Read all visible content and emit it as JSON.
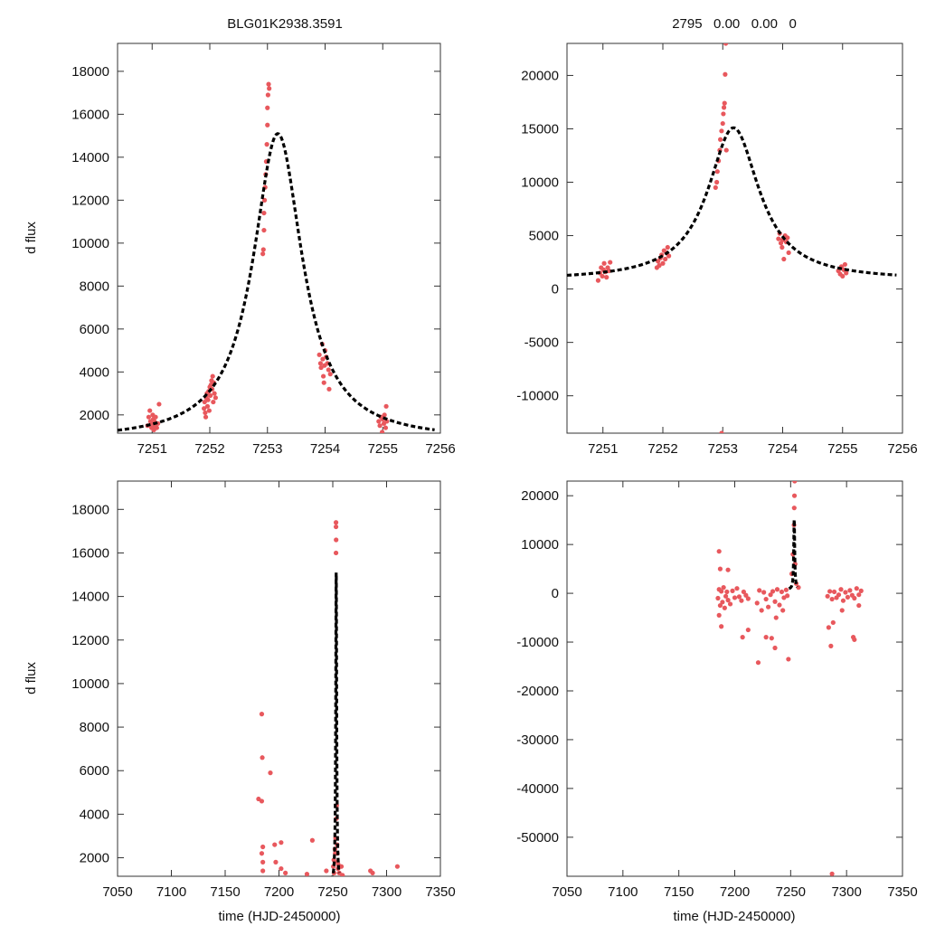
{
  "chart_data": [
    {
      "id": "p1",
      "type": "scatter",
      "title": "BLG01K2938.3591",
      "xlabel": "",
      "ylabel": "d flux",
      "xlim": [
        7250.4,
        7256.0
      ],
      "ylim": [
        1150,
        19300
      ],
      "xticks": [
        7251,
        7252,
        7253,
        7254,
        7255,
        7256
      ],
      "yticks": [
        2000,
        4000,
        6000,
        8000,
        10000,
        12000,
        14000,
        16000,
        18000
      ],
      "colors": {
        "data": "#e8585d",
        "model": "#000000"
      },
      "model": {
        "t0": 7253.18,
        "peak": 15100,
        "base": 800,
        "width": 0.52,
        "x_range": [
          7250.4,
          7255.9
        ]
      },
      "series": [
        {
          "name": "data",
          "x": [
            7250.92,
            7250.94,
            7250.96,
            7250.97,
            7250.99,
            7251.0,
            7251.01,
            7251.02,
            7251.03,
            7251.04,
            7251.05,
            7251.06,
            7251.08,
            7251.1,
            7251.12,
            7251.9,
            7251.91,
            7251.92,
            7251.93,
            7251.94,
            7251.95,
            7251.96,
            7251.97,
            7251.98,
            7251.99,
            7252.0,
            7252.01,
            7252.02,
            7252.03,
            7252.04,
            7252.05,
            7252.06,
            7252.07,
            7252.08,
            7252.1,
            7252.92,
            7252.93,
            7252.94,
            7252.94,
            7252.95,
            7252.96,
            7252.97,
            7252.98,
            7252.99,
            7253.0,
            7253.0,
            7253.01,
            7253.02,
            7253.03,
            7253.9,
            7253.92,
            7253.93,
            7253.95,
            7253.96,
            7253.97,
            7253.98,
            7253.99,
            7254.0,
            7254.02,
            7254.04,
            7254.06,
            7254.07,
            7254.09,
            7254.93,
            7254.95,
            7254.97,
            7254.99,
            7255.0,
            7255.02,
            7255.03,
            7255.05,
            7255.06,
            7255.07
          ],
          "y": [
            1500,
            1900,
            2200,
            1700,
            1400,
            1600,
            2000,
            1800,
            1300,
            1700,
            1500,
            1900,
            1400,
            1600,
            2500,
            2300,
            2600,
            2100,
            1900,
            2800,
            3000,
            2400,
            2700,
            3100,
            2200,
            3300,
            2900,
            3400,
            3600,
            3200,
            3800,
            2600,
            3500,
            3000,
            2800,
            9500,
            9700,
            10600,
            11400,
            12000,
            12600,
            13200,
            13800,
            14600,
            15500,
            16300,
            16900,
            17400,
            17200,
            4800,
            4400,
            4200,
            5300,
            4600,
            3800,
            3500,
            4300,
            5000,
            4700,
            4400,
            4100,
            3200,
            3900,
            1700,
            1500,
            1900,
            1200,
            1800,
            1600,
            2000,
            1400,
            2400,
            1700
          ]
        }
      ]
    },
    {
      "id": "p2",
      "type": "scatter",
      "title": "2795   0.00   0.00   0",
      "xlabel": "",
      "ylabel": "",
      "xlim": [
        7250.4,
        7256.0
      ],
      "ylim": [
        -13500,
        23000
      ],
      "xticks": [
        7251,
        7252,
        7253,
        7254,
        7255,
        7256
      ],
      "yticks": [
        -10000,
        -5000,
        0,
        5000,
        10000,
        15000,
        20000
      ],
      "colors": {
        "data": "#e8585d",
        "model": "#000000"
      },
      "model": {
        "t0": 7253.18,
        "peak": 15100,
        "base": 800,
        "width": 0.52,
        "x_range": [
          7250.4,
          7255.9
        ]
      },
      "series": [
        {
          "name": "data",
          "x": [
            7250.92,
            7250.95,
            7250.97,
            7250.99,
            7251.01,
            7251.02,
            7251.04,
            7251.06,
            7251.08,
            7251.1,
            7251.12,
            7251.9,
            7251.92,
            7251.94,
            7251.96,
            7251.98,
            7252.0,
            7252.02,
            7252.04,
            7252.06,
            7252.08,
            7252.1,
            7252.88,
            7252.9,
            7252.91,
            7252.93,
            7252.95,
            7252.96,
            7252.98,
            7253.0,
            7253.01,
            7253.02,
            7253.03,
            7253.04,
            7253.05,
            7253.06,
            7252.98,
            7253.93,
            7253.95,
            7253.97,
            7253.99,
            7254.0,
            7254.02,
            7254.04,
            7254.06,
            7254.08,
            7254.1,
            7254.93,
            7254.96,
            7254.98,
            7255.0,
            7255.02,
            7255.04,
            7255.06
          ],
          "y": [
            800,
            1500,
            2000,
            1200,
            1800,
            2400,
            1600,
            1100,
            2000,
            1700,
            2500,
            2000,
            2600,
            2200,
            2900,
            3200,
            2400,
            3600,
            2800,
            3400,
            3900,
            3100,
            9500,
            10000,
            11000,
            12000,
            13000,
            14000,
            14800,
            15500,
            16400,
            17000,
            17400,
            20100,
            23000,
            13000,
            -13500,
            4700,
            5200,
            4300,
            3900,
            4600,
            2800,
            5000,
            4400,
            4800,
            3400,
            1700,
            1400,
            2100,
            1200,
            1800,
            2300,
            1500
          ]
        }
      ]
    },
    {
      "id": "p3",
      "type": "scatter",
      "title": "",
      "xlabel": "time (HJD-2450000)",
      "ylabel": "d flux",
      "xlim": [
        7050,
        7350
      ],
      "ylim": [
        1150,
        19300
      ],
      "xticks": [
        7050,
        7100,
        7150,
        7200,
        7250,
        7300,
        7350
      ],
      "yticks": [
        2000,
        4000,
        6000,
        8000,
        10000,
        12000,
        14000,
        16000,
        18000
      ],
      "colors": {
        "data": "#e8585d",
        "model": "#000000"
      },
      "model": {
        "t0": 7253.18,
        "peak": 15100,
        "base": 800,
        "width": 0.52,
        "x_range": [
          7248.5,
          7255.9
        ]
      },
      "series": [
        {
          "name": "data",
          "x": [
            7181.0,
            7184.0,
            7184.5,
            7184.0,
            7185.0,
            7184.0,
            7185.0,
            7185.0,
            7192.0,
            7196.0,
            7197.0,
            7202.0,
            7202.0,
            7206.0,
            7231.0,
            7244.0,
            7226.0,
            7250.5,
            7251.0,
            7251.2,
            7252.0,
            7252.3,
            7252.6,
            7253.0,
            7253.0,
            7253.0,
            7253.1,
            7253.4,
            7253.6,
            7254.0,
            7254.2,
            7254.4,
            7254.8,
            7255.0,
            7256.0,
            7258.0,
            7259.0,
            7285.0,
            7287.0,
            7310.0
          ],
          "y": [
            4700,
            8600,
            6600,
            4600,
            2500,
            2200,
            1800,
            1400,
            5900,
            2600,
            1800,
            2700,
            1500,
            1300,
            2800,
            1400,
            1250,
            1600,
            1900,
            1300,
            2400,
            2200,
            2900,
            17400,
            16000,
            17200,
            16600,
            3800,
            4400,
            2600,
            2200,
            1800,
            1500,
            1700,
            1300,
            1600,
            1200,
            1400,
            1300,
            1600
          ]
        }
      ]
    },
    {
      "id": "p4",
      "type": "scatter",
      "title": "",
      "xlabel": "time (HJD-2450000)",
      "ylabel": "",
      "xlim": [
        7050,
        7350
      ],
      "ylim": [
        -58000,
        23000
      ],
      "xticks": [
        7050,
        7100,
        7150,
        7200,
        7250,
        7300,
        7350
      ],
      "yticks": [
        -50000,
        -40000,
        -30000,
        -20000,
        -10000,
        0,
        10000,
        20000
      ],
      "colors": {
        "data": "#e8585d",
        "model": "#000000"
      },
      "model": {
        "t0": 7253.18,
        "peak": 15100,
        "base": 800,
        "width": 0.52,
        "x_range": [
          7248.5,
          7255.9
        ]
      },
      "series": [
        {
          "name": "data",
          "x": [
            7185.0,
            7186.0,
            7187.0,
            7188.0,
            7189.0,
            7190.0,
            7192.0,
            7193.0,
            7194.0,
            7186.0,
            7188.0,
            7191.0,
            7196.0,
            7198.0,
            7200.0,
            7202.0,
            7204.0,
            7206.0,
            7208.0,
            7210.0,
            7212.0,
            7220.0,
            7222.0,
            7224.0,
            7226.0,
            7228.0,
            7230.0,
            7232.0,
            7234.0,
            7236.0,
            7238.0,
            7240.0,
            7242.0,
            7244.0,
            7246.0,
            7247.0,
            7221.0,
            7228.0,
            7233.0,
            7236.0,
            7248.0,
            7251.0,
            7252.0,
            7253.0,
            7253.2,
            7253.4,
            7253.6,
            7254.0,
            7255.0,
            7257.0,
            7186.0,
            7187.0,
            7194.0,
            7207.0,
            7212.0,
            7237.0,
            7243.0,
            7283.0,
            7285.0,
            7287.0,
            7289.0,
            7291.0,
            7293.0,
            7295.0,
            7297.0,
            7299.0,
            7301.0,
            7303.0,
            7305.0,
            7307.0,
            7309.0,
            7311.0,
            7313.0,
            7284.0,
            7286.0,
            7288.0,
            7296.0,
            7306.0,
            7307.0,
            7311.0,
            7287.0
          ],
          "y": [
            -1000,
            800,
            -2500,
            400,
            -1800,
            1200,
            -600,
            300,
            -1400,
            -4500,
            -6800,
            -3000,
            -2200,
            500,
            -900,
            1000,
            -700,
            -1500,
            300,
            -400,
            -1100,
            -2000,
            600,
            -3500,
            200,
            -1200,
            -2800,
            -300,
            400,
            -1700,
            800,
            -2400,
            300,
            -900,
            700,
            -500,
            -14200,
            -9000,
            -9200,
            -11200,
            -13500,
            4000,
            8000,
            14000,
            17500,
            20000,
            23000,
            6000,
            2000,
            1200,
            8600,
            5000,
            4800,
            -9000,
            -7500,
            -5000,
            -3500,
            -600,
            400,
            -1200,
            300,
            -900,
            -300,
            800,
            -1500,
            200,
            -800,
            600,
            -400,
            -1000,
            1000,
            -300,
            500,
            -7000,
            -10800,
            -6000,
            -3500,
            -9000,
            -9500,
            -2500,
            -57500
          ]
        }
      ]
    }
  ]
}
